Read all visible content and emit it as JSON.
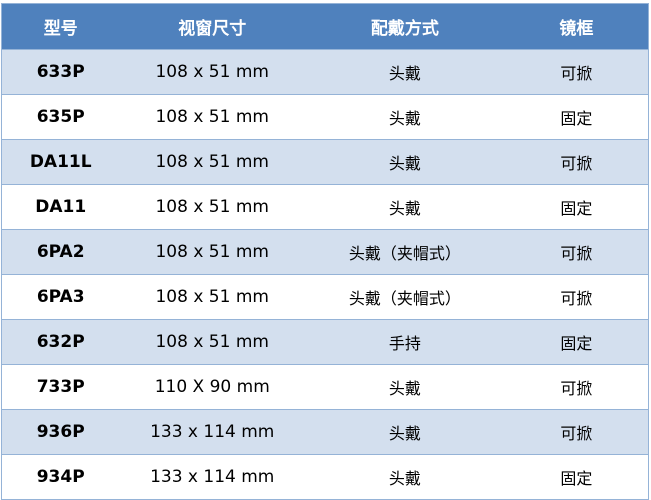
{
  "colors": {
    "header_bg": "#4f81bd",
    "alt_row_bg": "#d3dfee",
    "border": "#95b3d7"
  },
  "headers": [
    "型号",
    "视窗尺寸",
    "配戴方式",
    "镜框"
  ],
  "rows": [
    [
      "633P",
      "108 x 51 mm",
      "头戴",
      "可掀"
    ],
    [
      "635P",
      "108 x 51 mm",
      "头戴",
      "固定"
    ],
    [
      "DA11L",
      "108 x 51 mm",
      "头戴",
      "可掀"
    ],
    [
      "DA11",
      "108 x 51 mm",
      "头戴",
      "固定"
    ],
    [
      "6PA2",
      "108 x 51 mm",
      "头戴（夹帽式）",
      "可掀"
    ],
    [
      "6PA3",
      "108 x 51 mm",
      "头戴（夹帽式）",
      "可掀"
    ],
    [
      "632P",
      "108 x 51 mm",
      "手持",
      "固定"
    ],
    [
      "733P",
      "110 X 90 mm",
      "头戴",
      "可掀"
    ],
    [
      "936P",
      "133 x 114 mm",
      "头戴",
      "可掀"
    ],
    [
      "934P",
      "133 x 114 mm",
      "头戴",
      "固定"
    ]
  ]
}
